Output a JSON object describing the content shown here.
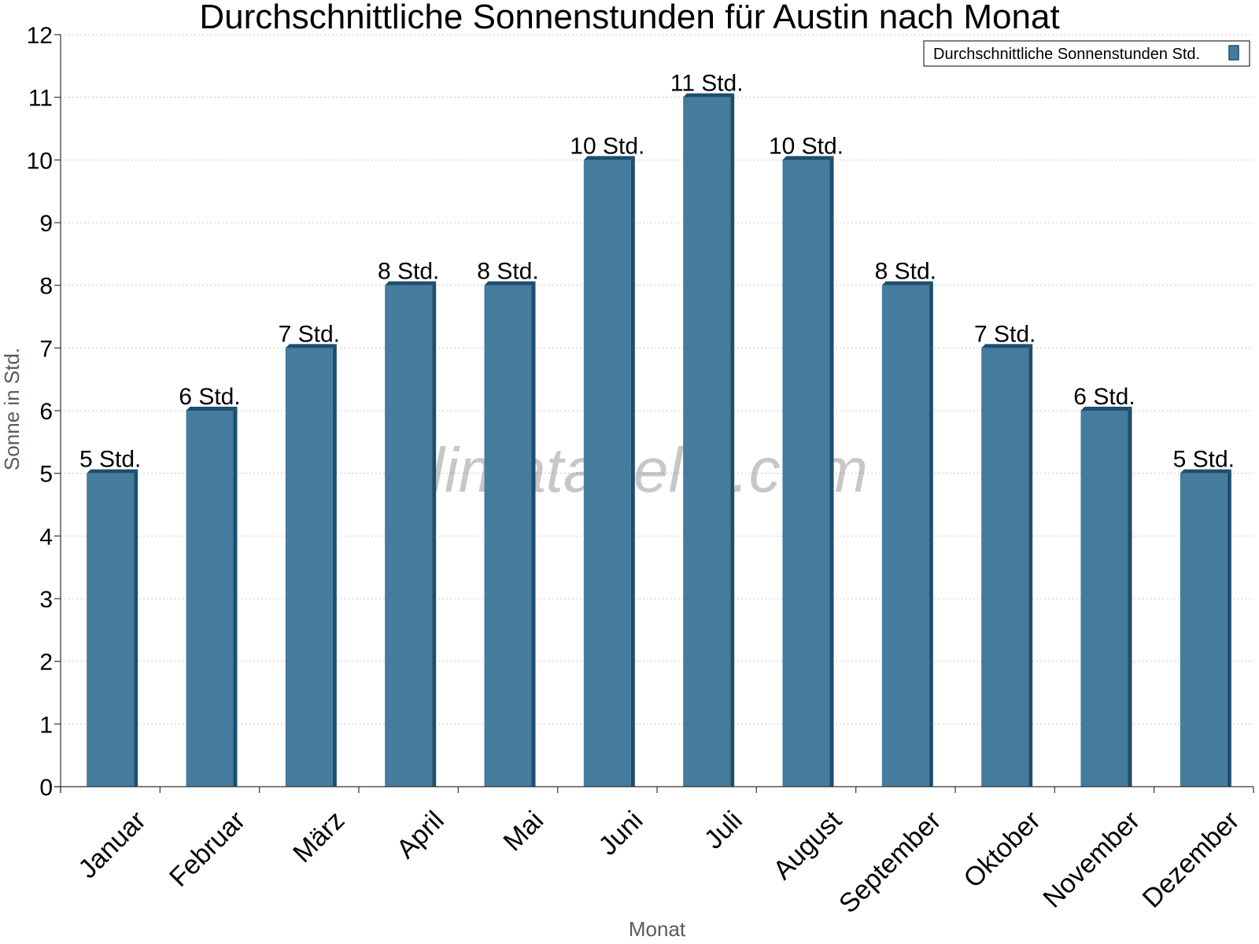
{
  "chart_data": {
    "type": "bar",
    "title": "Durchschnittliche Sonnenstunden für Austin nach Monat",
    "xlabel": "Monat",
    "ylabel": "Sonne in Std.",
    "ylim": [
      0,
      12
    ],
    "yticks": [
      0,
      1,
      2,
      3,
      4,
      5,
      6,
      7,
      8,
      9,
      10,
      11,
      12
    ],
    "grid": true,
    "legend_position": "top-right",
    "categories": [
      "Januar",
      "Februar",
      "März",
      "April",
      "Mai",
      "Juni",
      "Juli",
      "August",
      "September",
      "Oktober",
      "November",
      "Dezember"
    ],
    "series": [
      {
        "name": "Durchschnittliche Sonnenstunden Std.",
        "values": [
          5,
          6,
          7,
          8,
          8,
          10,
          11,
          10,
          8,
          7,
          6,
          5
        ],
        "labels": [
          "5 Std.",
          "6 Std.",
          "7 Std.",
          "8 Std.",
          "8 Std.",
          "10 Std.",
          "11 Std.",
          "10 Std.",
          "8 Std.",
          "7 Std.",
          "6 Std.",
          "5 Std."
        ],
        "color": "#457b9d",
        "side_color": "#1d4e6e"
      }
    ],
    "watermark": "klimatabelle.com"
  }
}
